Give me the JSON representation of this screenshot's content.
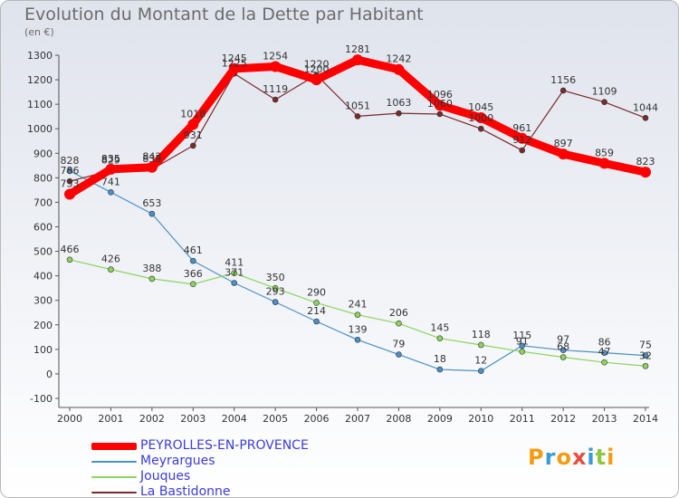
{
  "title": "Evolution du Montant de la Dette par Habitant",
  "unit_label": "(en €)",
  "logo_text": "Proxiti",
  "logo_colors": [
    "#f39c12",
    "#3a9ad9",
    "#f39c12",
    "#e74c3c",
    "#3a9ad9",
    "#8dc63f",
    "#f39c12"
  ],
  "chart_data": {
    "type": "line",
    "title": "Evolution du Montant de la Dette par Habitant",
    "ylabel": "(en €)",
    "xlabel": "",
    "x": [
      "2000",
      "2001",
      "2002",
      "2003",
      "2004",
      "2005",
      "2006",
      "2007",
      "2008",
      "2009",
      "2010",
      "2011",
      "2012",
      "2013",
      "2014"
    ],
    "ylim": [
      -100,
      1300
    ],
    "yticks": [
      -100,
      0,
      100,
      200,
      300,
      400,
      500,
      600,
      700,
      800,
      900,
      1000,
      1100,
      1200,
      1300
    ],
    "grid": "none",
    "legend_position": "bottom-left",
    "series": [
      {
        "name": "PEYROLLES-EN-PROVENCE",
        "color": "#ff0000",
        "values": [
          733,
          835,
          843,
          1018,
          1245,
          1254,
          1200,
          1281,
          1242,
          1096,
          1045,
          961,
          897,
          859,
          823
        ],
        "labels": [
          "733",
          "835",
          "843",
          "1018",
          "1245",
          "1254",
          "1200",
          "1281",
          "1242",
          "1096",
          "1045",
          "961",
          "897",
          "859",
          "823"
        ]
      },
      {
        "name": "Meyrargues",
        "color": "#4a90c8",
        "values": [
          828,
          741,
          653,
          461,
          371,
          293,
          214,
          139,
          79,
          18,
          12,
          115,
          97,
          86,
          75
        ],
        "labels": [
          "828",
          "741",
          "653",
          "461",
          "371",
          "293",
          "214",
          "139",
          "79",
          "18",
          "12",
          "115",
          "97",
          "86",
          "75"
        ]
      },
      {
        "name": "Jouques",
        "color": "#8dd35f",
        "values": [
          466,
          426,
          388,
          366,
          411,
          350,
          290,
          241,
          206,
          145,
          118,
          91,
          68,
          47,
          32
        ],
        "labels": [
          "466",
          "426",
          "388",
          "366",
          "411",
          "350",
          "290",
          "241",
          "206",
          "145",
          "118",
          "91",
          "68",
          "47",
          "32"
        ]
      },
      {
        "name": "La Bastidonne",
        "color": "#7a2a2a",
        "values": [
          786,
          829,
          835,
          931,
          1225,
          1119,
          1220,
          1051,
          1063,
          1060,
          1000,
          912,
          1156,
          1109,
          1044
        ],
        "labels": [
          "786",
          "829",
          "835",
          "931",
          "1225",
          "1119",
          "1220",
          "1051",
          "1063",
          "1060",
          "1000",
          "912",
          "1156",
          "1109",
          "1044"
        ]
      }
    ]
  }
}
